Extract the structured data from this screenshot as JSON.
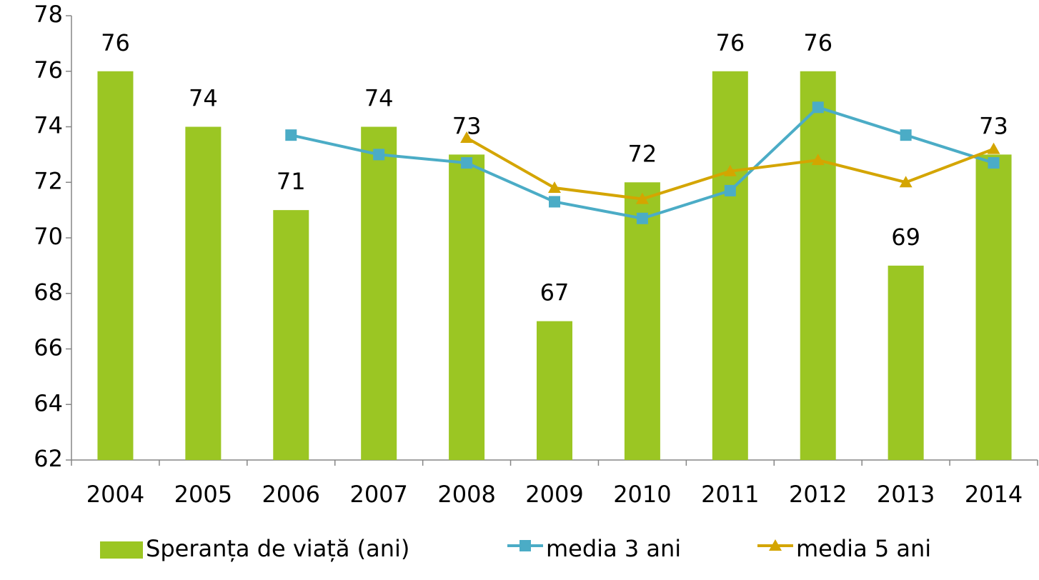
{
  "chart_data": {
    "type": "bar",
    "categories": [
      "2004",
      "2005",
      "2006",
      "2007",
      "2008",
      "2009",
      "2010",
      "2011",
      "2012",
      "2013",
      "2014"
    ],
    "series": [
      {
        "name": "Speranța de viață (ani)",
        "type": "bar",
        "color": "#9bc623",
        "values": [
          76,
          74,
          71,
          74,
          73,
          67,
          72,
          76,
          76,
          69,
          73
        ],
        "data_labels": true
      },
      {
        "name": "media 3 ani",
        "type": "line",
        "marker": "square",
        "color": "#4bacc6",
        "values": [
          null,
          null,
          73.7,
          73,
          72.7,
          71.3,
          70.7,
          71.7,
          74.7,
          73.7,
          72.7
        ]
      },
      {
        "name": "media 5 ani",
        "type": "line",
        "marker": "triangle",
        "color": "#d4a500",
        "values": [
          null,
          null,
          null,
          null,
          73.6,
          71.8,
          71.4,
          72.4,
          72.8,
          72,
          73.2
        ]
      }
    ],
    "ylim": [
      62,
      78
    ],
    "yticks": [
      62,
      64,
      66,
      68,
      70,
      72,
      74,
      76,
      78
    ],
    "legend": "bottom"
  }
}
